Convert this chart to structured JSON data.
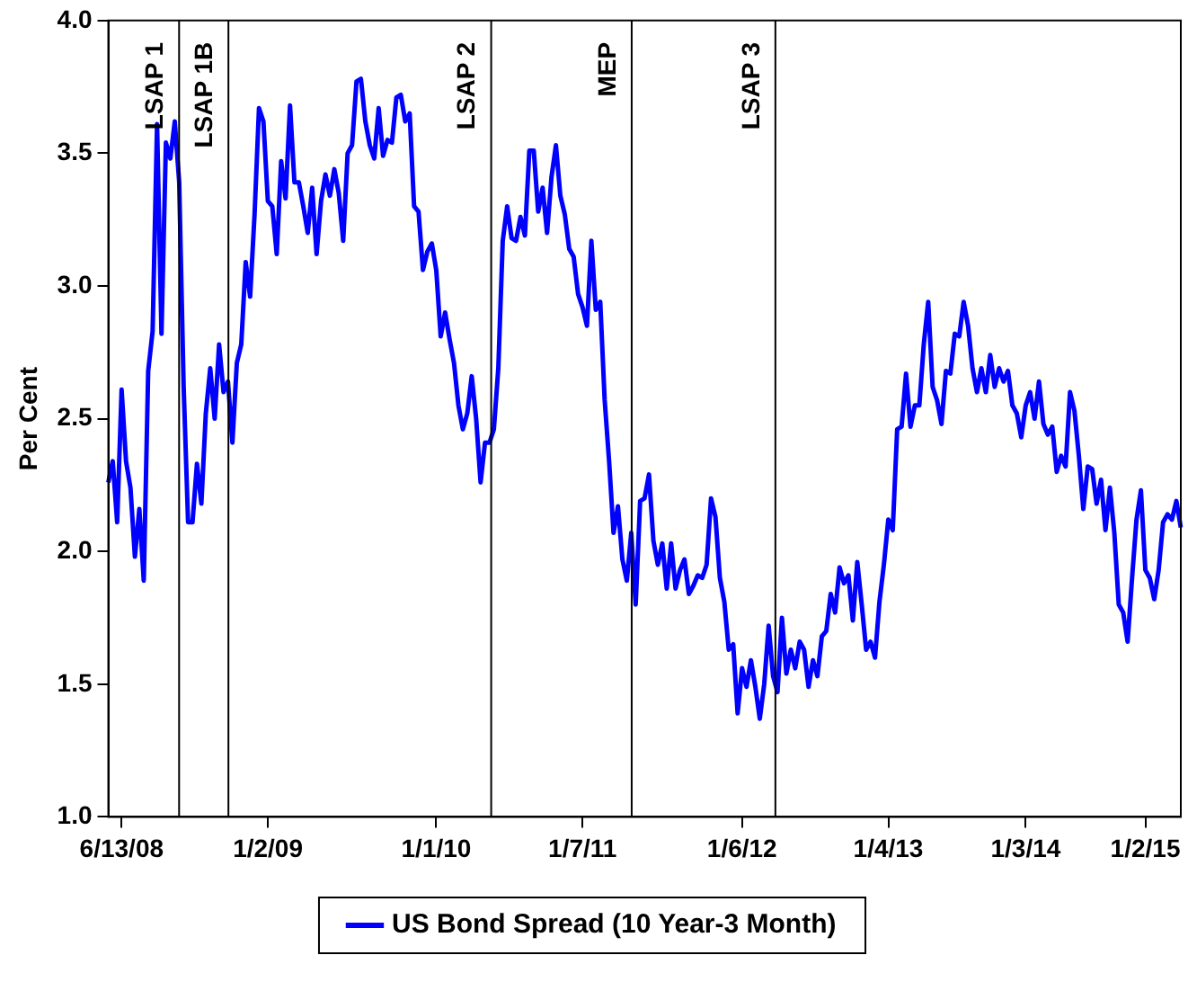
{
  "chart_data": {
    "type": "line",
    "ylabel": "Per Cent",
    "legend": "bottom",
    "grid": false,
    "marker": "none",
    "line_style": "solid",
    "categories": [
      null,
      null,
      null,
      "6/13/08",
      null,
      null,
      null,
      null,
      null,
      null,
      null,
      null,
      null,
      null,
      null,
      null,
      null,
      null,
      null,
      null,
      null,
      null,
      null,
      null,
      null,
      null,
      null,
      null,
      null,
      null,
      null,
      null,
      null,
      null,
      null,
      null,
      "1/2/09",
      null,
      null,
      null,
      null,
      null,
      null,
      null,
      null,
      null,
      null,
      null,
      null,
      null,
      null,
      null,
      null,
      null,
      null,
      null,
      null,
      null,
      null,
      null,
      null,
      null,
      null,
      null,
      null,
      null,
      null,
      null,
      null,
      null,
      null,
      null,
      null,
      null,
      "1/1/10",
      null,
      null,
      null,
      null,
      null,
      null,
      null,
      null,
      null,
      null,
      null,
      null,
      null,
      null,
      null,
      null,
      null,
      null,
      null,
      null,
      null,
      null,
      null,
      null,
      null,
      null,
      null,
      null,
      null,
      null,
      null,
      null,
      "1/7/11",
      null,
      null,
      null,
      null,
      null,
      null,
      null,
      null,
      null,
      null,
      null,
      null,
      null,
      null,
      null,
      null,
      null,
      null,
      null,
      null,
      null,
      null,
      null,
      null,
      null,
      null,
      null,
      null,
      null,
      null,
      null,
      null,
      null,
      null,
      null,
      "1/6/12",
      null,
      null,
      null,
      null,
      null,
      null,
      null,
      null,
      null,
      null,
      null,
      null,
      null,
      null,
      null,
      null,
      null,
      null,
      null,
      null,
      null,
      null,
      null,
      null,
      null,
      null,
      null,
      null,
      null,
      null,
      null,
      null,
      "1/4/13",
      null,
      null,
      null,
      null,
      null,
      null,
      null,
      null,
      null,
      null,
      null,
      null,
      null,
      null,
      null,
      null,
      null,
      null,
      null,
      null,
      null,
      null,
      null,
      null,
      null,
      null,
      null,
      null,
      null,
      null,
      "1/3/14",
      null,
      null,
      null,
      null,
      null,
      null,
      null,
      null,
      null,
      null,
      null,
      null,
      null,
      null,
      null,
      null,
      null,
      null,
      null,
      null,
      null,
      null,
      null,
      null,
      null,
      null,
      "1/2/15",
      null,
      null,
      null,
      null,
      null,
      null,
      null,
      null
    ],
    "ylim": [
      1,
      4
    ],
    "yticks": [
      {
        "value": 1,
        "label": "1.0"
      },
      {
        "value": 1.5,
        "label": "1.5"
      },
      {
        "value": 2,
        "label": "2.0"
      },
      {
        "value": 2.5,
        "label": "2.5"
      },
      {
        "value": 3,
        "label": "3.0"
      },
      {
        "value": 3.5,
        "label": "3.5"
      },
      {
        "value": 4,
        "label": "4.0"
      }
    ],
    "annotations": [
      "LSAP 1",
      "LSAP 1B",
      "LSAP 2",
      "MEP",
      "LSAP 3"
    ],
    "series": [
      {
        "name": "US Bond Spread (10 Year-3 Month)",
        "color": "#0000ff",
        "values": [
          2.26,
          2.34,
          2.11,
          2.61,
          2.34,
          2.24,
          1.98,
          2.16,
          1.89,
          2.68,
          2.83,
          3.61,
          2.82,
          3.54,
          3.48,
          3.62,
          3.39,
          2.62,
          2.11,
          2.11,
          2.33,
          2.18,
          2.52,
          2.69,
          2.5,
          2.78,
          2.6,
          2.64,
          2.41,
          2.71,
          2.78,
          3.09,
          2.96,
          3.27,
          3.67,
          3.62,
          3.32,
          3.3,
          3.12,
          3.47,
          3.33,
          3.68,
          3.39,
          3.39,
          3.3,
          3.2,
          3.37,
          3.12,
          3.32,
          3.42,
          3.34,
          3.44,
          3.35,
          3.17,
          3.5,
          3.53,
          3.77,
          3.78,
          3.62,
          3.53,
          3.48,
          3.67,
          3.49,
          3.55,
          3.54,
          3.71,
          3.72,
          3.62,
          3.65,
          3.3,
          3.28,
          3.06,
          3.13,
          3.16,
          3.06,
          2.81,
          2.9,
          2.8,
          2.71,
          2.55,
          2.46,
          2.52,
          2.66,
          2.5,
          2.26,
          2.41,
          2.41,
          2.46,
          2.69,
          3.17,
          3.3,
          3.18,
          3.17,
          3.26,
          3.19,
          3.51,
          3.51,
          3.28,
          3.37,
          3.2,
          3.41,
          3.53,
          3.34,
          3.27,
          3.14,
          3.11,
          2.97,
          2.92,
          2.85,
          3.17,
          2.91,
          2.94,
          2.57,
          2.34,
          2.07,
          2.17,
          1.97,
          1.89,
          2.07,
          1.8,
          2.19,
          2.2,
          2.29,
          2.04,
          1.95,
          2.03,
          1.86,
          2.03,
          1.86,
          1.93,
          1.97,
          1.84,
          1.87,
          1.91,
          1.9,
          1.95,
          2.2,
          2.13,
          1.9,
          1.81,
          1.63,
          1.65,
          1.39,
          1.56,
          1.49,
          1.59,
          1.49,
          1.37,
          1.5,
          1.72,
          1.53,
          1.47,
          1.75,
          1.54,
          1.63,
          1.56,
          1.66,
          1.63,
          1.49,
          1.59,
          1.53,
          1.68,
          1.7,
          1.84,
          1.77,
          1.94,
          1.88,
          1.91,
          1.74,
          1.96,
          1.8,
          1.63,
          1.66,
          1.6,
          1.81,
          1.95,
          2.12,
          2.08,
          2.46,
          2.47,
          2.67,
          2.47,
          2.55,
          2.55,
          2.78,
          2.94,
          2.62,
          2.57,
          2.48,
          2.68,
          2.67,
          2.82,
          2.81,
          2.94,
          2.85,
          2.69,
          2.6,
          2.69,
          2.6,
          2.74,
          2.62,
          2.69,
          2.64,
          2.68,
          2.55,
          2.52,
          2.43,
          2.55,
          2.6,
          2.5,
          2.64,
          2.48,
          2.44,
          2.47,
          2.3,
          2.36,
          2.32,
          2.6,
          2.53,
          2.36,
          2.16,
          2.32,
          2.31,
          2.18,
          2.27,
          2.08,
          2.24,
          2.07,
          1.8,
          1.77,
          1.66,
          1.9,
          2.12,
          2.23,
          1.93,
          1.9,
          1.82,
          1.93,
          2.11,
          2.14,
          2.12,
          2.19,
          2.09
        ]
      }
    ]
  }
}
